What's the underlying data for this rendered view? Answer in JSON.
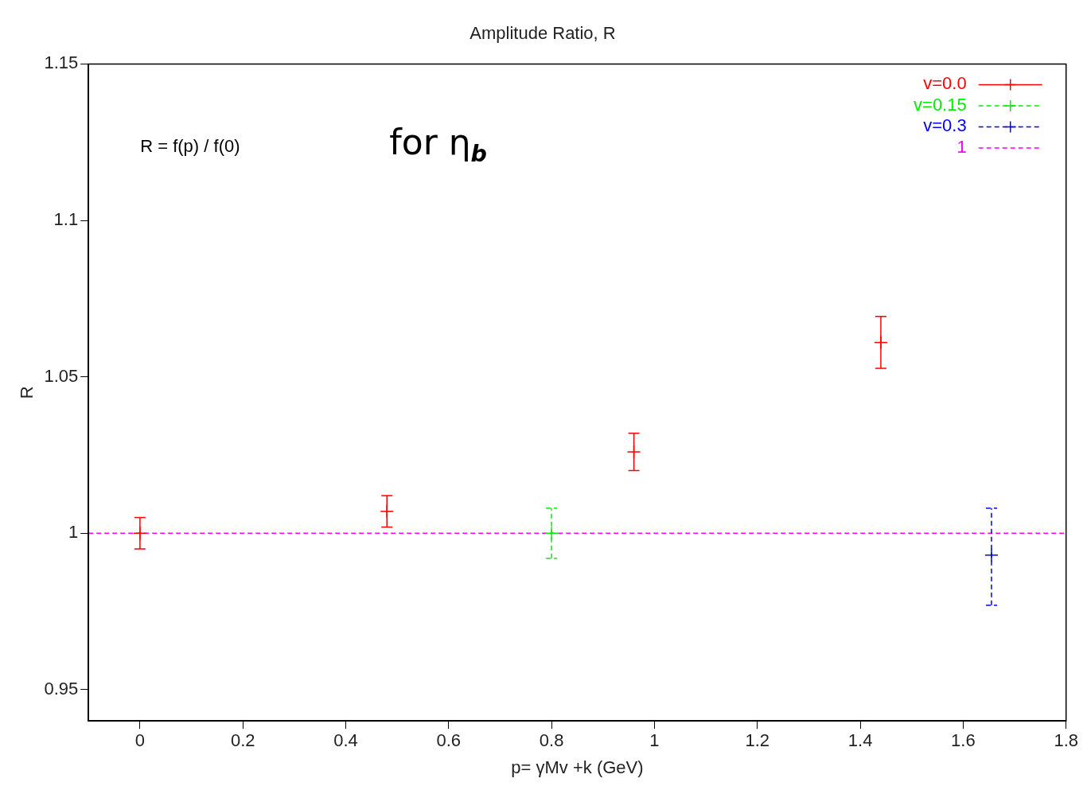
{
  "chart_data": {
    "type": "scatter",
    "title": "Amplitude Ratio, R",
    "xlabel": "p= γMv +k (GeV)",
    "ylabel": "R",
    "xlim": [
      -0.1,
      1.8
    ],
    "xticks": [
      0,
      0.2,
      0.4,
      0.6,
      0.8,
      1,
      1.2,
      1.4,
      1.6,
      1.8
    ],
    "ylim": [
      0.94,
      1.15
    ],
    "yticks": [
      0.95,
      1,
      1.05,
      1.1,
      1.15
    ],
    "legend": "top right",
    "annotations": [
      "R = f(p) / f(0)",
      "for η$_{b}$"
    ],
    "series": [
      {
        "name": "v=0.0",
        "color": "#ff0000",
        "marker": "cross",
        "line_style": "solid",
        "x": [
          0,
          0.48,
          0.96,
          1.44
        ],
        "values": [
          1.0,
          1.007,
          1.026,
          1.061
        ],
        "errors": [
          0.005,
          0.005,
          0.006,
          0.0083
        ]
      },
      {
        "name": "v=0.15",
        "color": "#00ee00",
        "marker": "cross",
        "line_style": "dashed",
        "x": [
          0.8
        ],
        "values": [
          1.0
        ],
        "errors": [
          0.008
        ]
      },
      {
        "name": "v=0.3",
        "color": "#0000ff",
        "marker": "cross",
        "line_style": "dashed",
        "x": [
          1.655
        ],
        "values": [
          0.993
        ],
        "errors": [
          [
            0.977,
            1.008
          ]
        ]
      },
      {
        "name": "1",
        "type": "line",
        "color": "#ff00ff",
        "marker": "none",
        "line_style": "dashed",
        "x": [
          -0.1,
          1.8
        ],
        "values": [
          1,
          1
        ]
      }
    ]
  }
}
